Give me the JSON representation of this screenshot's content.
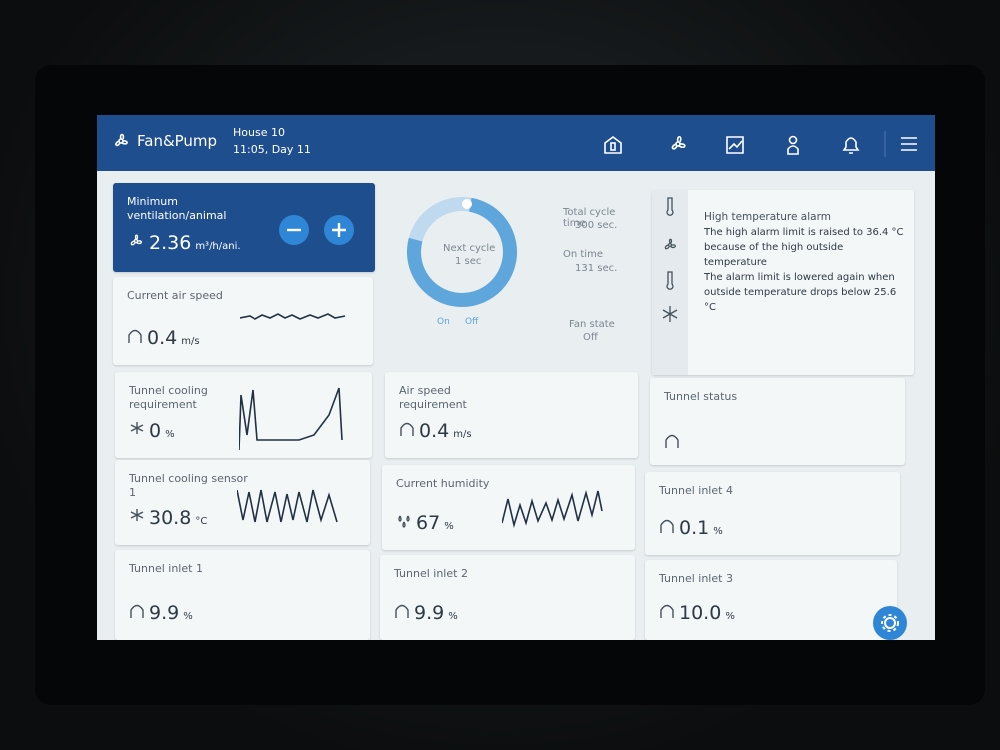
{
  "header": {
    "app": "Fan&Pump",
    "house": "House 10",
    "time": "11:05, Day 11"
  },
  "ventilation": {
    "title": "Minimum ventilation/animal",
    "value": "2.36",
    "unit": "m³/h/ani."
  },
  "cycle": {
    "next_label": "Next cycle",
    "next_value": "1 sec",
    "total_label": "Total cycle time",
    "total_value": "300 sec.",
    "on_label": "On time",
    "on_value": "131 sec.",
    "fan_label": "Fan state",
    "fan_value": "Off",
    "legend": [
      "On",
      "Off"
    ]
  },
  "alarm": {
    "title": "High temperature alarm",
    "lines": [
      "The high alarm limit is raised to 36.4 °C because of the high outside temperature",
      "The alarm limit is lowered again when outside temperature drops below 25.6 °C"
    ]
  },
  "cards": [
    {
      "title": "Current air speed",
      "value": "0.4",
      "unit": "m/s"
    },
    {
      "title": "Tunnel cooling requirement",
      "value": "0",
      "unit": "%"
    },
    {
      "title": "Air speed requirement",
      "value": "0.4",
      "unit": "m/s"
    },
    {
      "title": "Tunnel status"
    },
    {
      "title": "Tunnel cooling sensor 1",
      "value": "30.8",
      "unit": "°C"
    },
    {
      "title": "Current humidity",
      "value": "67",
      "unit": "%"
    },
    {
      "title": "Tunnel inlet 4",
      "value": "0.1",
      "unit": "%"
    },
    {
      "title": "Tunnel inlet 1",
      "value": "9.9",
      "unit": "%"
    },
    {
      "title": "Tunnel inlet 2",
      "value": "9.9",
      "unit": "%"
    },
    {
      "title": "Tunnel inlet 3",
      "value": "10.0",
      "unit": "%"
    }
  ]
}
